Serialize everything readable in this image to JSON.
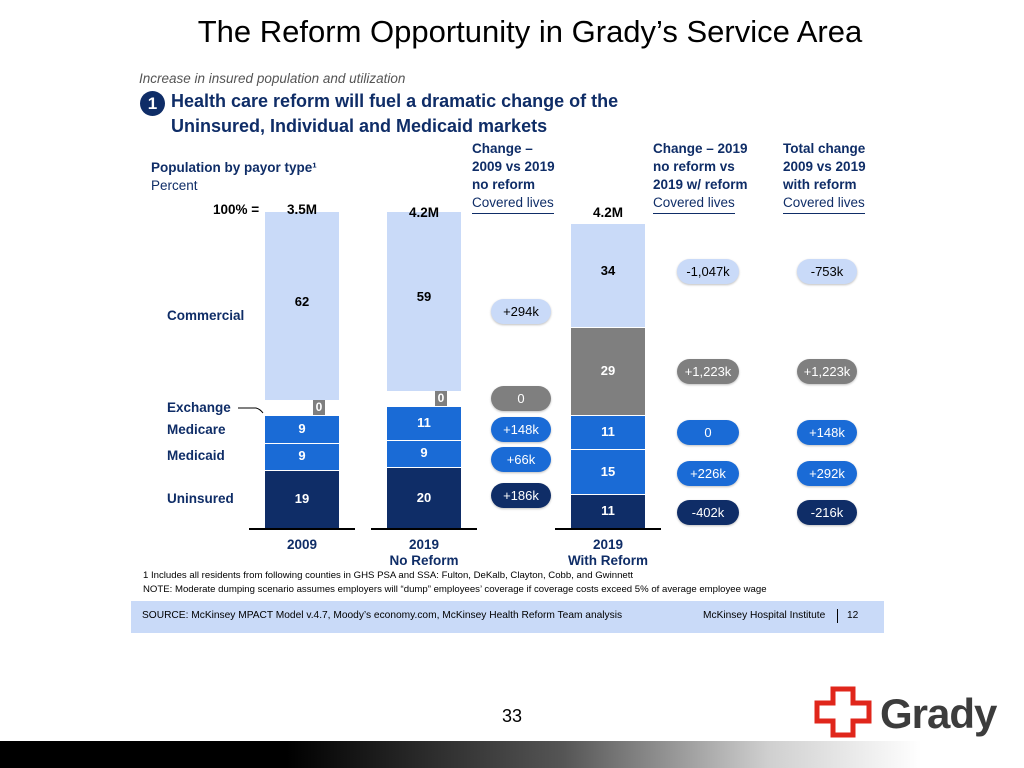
{
  "slide": {
    "title": "The Reform Opportunity in Grady’s Service Area",
    "number": "33",
    "logo": {
      "text": "Grady",
      "cross_color": "#e0261b"
    }
  },
  "panel": {
    "subtitle": "Increase in insured population and utilization",
    "badge": "1",
    "headline_line1": "Health care reform will fuel a dramatic change of the",
    "headline_line2": "Uninsured, Individual and Medicaid markets",
    "footnote": "1 Includes all residents from following counties in GHS PSA and SSA: Fulton, DeKalb, Clayton, Cobb, and Gwinnett",
    "note": "NOTE: Moderate dumping scenario assumes employers will “dump” employees’ coverage if coverage costs exceed 5% of average employee wage",
    "source": "SOURCE: McKinsey MPACT Model v.4.7, Moody’s economy.com, McKinsey Health Reform Team analysis",
    "brand": "McKinsey Hospital Institute",
    "page": "12"
  },
  "chart_data": {
    "type": "bar",
    "stacked": true,
    "title": "Population by payor type¹",
    "unit": "Percent",
    "total_prefix": "100% =",
    "categories": [
      {
        "line1": "2009",
        "line2": ""
      },
      {
        "line1": "2019",
        "line2": "No Reform"
      },
      {
        "line1": "2019",
        "line2": "With Reform"
      }
    ],
    "totals": [
      "3.5M",
      "4.2M",
      "4.2M"
    ],
    "row_labels": {
      "commercial": "Commercial",
      "exchange": "Exchange",
      "medicare": "Medicare",
      "medicaid": "Medicaid",
      "uninsured": "Uninsured"
    },
    "series": [
      {
        "key": "uninsured",
        "color": "#0f2d67",
        "values": [
          "19",
          "20",
          "11"
        ]
      },
      {
        "key": "medicaid",
        "color": "#1a6bd6",
        "values": [
          "9",
          "9",
          "15"
        ]
      },
      {
        "key": "medicare",
        "color": "#1a6bd6",
        "values": [
          "9",
          "11",
          "11"
        ]
      },
      {
        "key": "exchange",
        "color": "#7f7f7f",
        "values": [
          "0",
          "0",
          "29"
        ]
      },
      {
        "key": "commercial",
        "color": "#c9daf8",
        "values": [
          "62",
          "59",
          "34"
        ]
      }
    ],
    "change_columns": [
      {
        "header_line1": "Change –",
        "header_line2": "2009 vs 2019",
        "header_line3": "no reform",
        "header_line4": "Covered lives",
        "values": {
          "commercial": "+294k",
          "exchange": "0",
          "medicare": "+148k",
          "medicaid": "+66k",
          "uninsured": "+186k"
        }
      },
      {
        "header_line1": "Change – 2019",
        "header_line2": "no reform vs",
        "header_line3": "2019 w/ reform",
        "header_line4": "Covered lives",
        "values": {
          "commercial": "-1,047k",
          "exchange": "+1,223k",
          "medicare": "0",
          "medicaid": "+226k",
          "uninsured": "-402k"
        }
      },
      {
        "header_line1": "Total change",
        "header_line2": "2009 vs 2019",
        "header_line3": "with reform",
        "header_line4": "Covered lives",
        "values": {
          "commercial": "-753k",
          "exchange": "+1,223k",
          "medicare": "+148k",
          "medicaid": "+292k",
          "uninsured": "-216k"
        }
      }
    ],
    "pill_colors": {
      "commercial": "#c9daf8",
      "exchange": "#7f7f7f",
      "medicare": "#1a6bd6",
      "medicaid": "#1a6bd6",
      "uninsured": "#0f2d67"
    }
  }
}
